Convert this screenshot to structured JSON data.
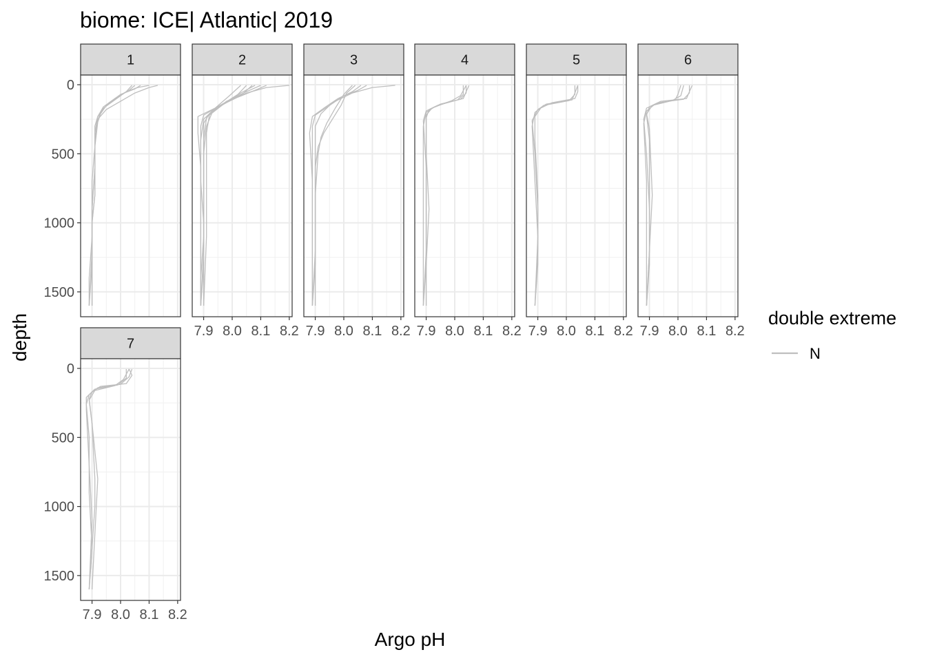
{
  "chart_data": {
    "type": "line",
    "title": "biome: ICE| Atlantic| 2019",
    "xlabel": "Argo pH",
    "ylabel": "depth",
    "xlim": [
      7.86,
      8.21
    ],
    "ylim": [
      1680,
      -70
    ],
    "y_reversed": true,
    "x_ticks": [
      7.9,
      8.0,
      8.1,
      8.2
    ],
    "x_tick_labels": [
      "7.9",
      "8.0",
      "8.1",
      "8.2"
    ],
    "y_ticks": [
      0,
      500,
      1000,
      1500
    ],
    "y_tick_labels": [
      "0",
      "500",
      "1000",
      "1500"
    ],
    "grid": true,
    "legend": {
      "title": "double extreme",
      "position": "right",
      "entries": [
        {
          "label": "N",
          "color": "#bebebe"
        }
      ]
    },
    "line_color": "#bebebe",
    "panels": [
      {
        "label": "1",
        "series": [
          {
            "x": [
              8.13,
              8.1,
              8.05,
              8.0,
              7.95,
              7.92,
              7.91,
              7.91,
              7.91,
              7.9,
              7.9,
              7.9
            ],
            "y": [
              5,
              20,
              60,
              120,
              180,
              250,
              350,
              500,
              800,
              1000,
              1300,
              1600
            ]
          },
          {
            "x": [
              8.1,
              8.06,
              8.02,
              7.98,
              7.94,
              7.92,
              7.91,
              7.91,
              7.9,
              7.9,
              7.89,
              7.89
            ],
            "y": [
              5,
              20,
              50,
              100,
              160,
              230,
              350,
              600,
              900,
              1100,
              1400,
              1600
            ]
          },
          {
            "x": [
              8.07,
              8.05,
              8.0,
              7.96,
              7.93,
              7.92,
              7.91,
              7.91,
              7.91,
              7.9,
              7.9,
              7.9
            ],
            "y": [
              5,
              30,
              70,
              130,
              200,
              260,
              400,
              600,
              800,
              1000,
              1300,
              1600
            ]
          },
          {
            "x": [
              8.05,
              8.03,
              7.99,
              7.95,
              7.93,
              7.92,
              7.91,
              7.9,
              7.9,
              7.9,
              7.89
            ],
            "y": [
              5,
              40,
              90,
              150,
              210,
              270,
              450,
              700,
              1000,
              1300,
              1600
            ]
          },
          {
            "x": [
              8.04,
              8.02,
              7.98,
              7.94,
              7.92,
              7.91,
              7.91,
              7.9,
              7.9,
              7.89
            ],
            "y": [
              5,
              50,
              110,
              170,
              230,
              300,
              600,
              900,
              1200,
              1600
            ]
          }
        ]
      },
      {
        "label": "2",
        "series": [
          {
            "x": [
              8.2,
              8.12,
              8.05,
              7.98,
              7.93,
              7.91,
              7.9,
              7.9,
              7.9,
              7.89,
              7.89
            ],
            "y": [
              5,
              20,
              60,
              120,
              200,
              300,
              500,
              800,
              1100,
              1400,
              1600
            ]
          },
          {
            "x": [
              8.12,
              8.08,
              8.02,
              7.95,
              7.9,
              7.89,
              7.89,
              7.89,
              7.89,
              7.89
            ],
            "y": [
              5,
              40,
              90,
              160,
              220,
              300,
              600,
              900,
              1300,
              1600
            ]
          },
          {
            "x": [
              8.1,
              8.05,
              8.0,
              7.94,
              7.88,
              7.88,
              7.89,
              7.89,
              7.89,
              7.89
            ],
            "y": [
              5,
              50,
              100,
              170,
              230,
              350,
              600,
              1000,
              1300,
              1600
            ]
          },
          {
            "x": [
              8.07,
              8.04,
              7.98,
              7.93,
              7.9,
              7.89,
              7.89,
              7.9,
              7.9,
              7.89
            ],
            "y": [
              5,
              60,
              130,
              190,
              250,
              400,
              700,
              1000,
              1300,
              1600
            ]
          },
          {
            "x": [
              8.05,
              8.02,
              7.96,
              7.92,
              7.9,
              7.9,
              7.9,
              7.9,
              7.89
            ],
            "y": [
              5,
              70,
              150,
              210,
              280,
              500,
              800,
              1200,
              1600
            ]
          },
          {
            "x": [
              8.03,
              7.99,
              7.94,
              7.91,
              7.9,
              7.9,
              7.9,
              7.9
            ],
            "y": [
              5,
              80,
              170,
              240,
              400,
              800,
              1200,
              1600
            ]
          },
          {
            "x": [
              8.08,
              8.03,
              7.97,
              7.92,
              7.91,
              7.91,
              7.91,
              7.9
            ],
            "y": [
              5,
              60,
              140,
              220,
              350,
              700,
              1100,
              1600
            ]
          }
        ]
      },
      {
        "label": "3",
        "series": [
          {
            "x": [
              8.18,
              8.1,
              8.03,
              7.96,
              7.92,
              7.9,
              7.9,
              7.9,
              7.9,
              7.89
            ],
            "y": [
              5,
              20,
              60,
              130,
              210,
              300,
              500,
              900,
              1300,
              1600
            ]
          },
          {
            "x": [
              8.08,
              8.05,
              8.0,
              7.95,
              7.9,
              7.89,
              7.89,
              7.89,
              7.89,
              7.89
            ],
            "y": [
              5,
              40,
              80,
              150,
              220,
              300,
              600,
              1000,
              1300,
              1600
            ]
          },
          {
            "x": [
              8.06,
              8.03,
              7.98,
              7.93,
              7.89,
              7.88,
              7.89,
              7.89,
              7.89,
              7.89
            ],
            "y": [
              5,
              50,
              100,
              170,
              230,
              350,
              700,
              1000,
              1300,
              1600
            ]
          },
          {
            "x": [
              8.04,
              8.01,
              7.99,
              7.96,
              7.93,
              7.91,
              7.9,
              7.9,
              7.9,
              7.89
            ],
            "y": [
              5,
              60,
              150,
              250,
              350,
              450,
              600,
              900,
              1200,
              1600
            ]
          },
          {
            "x": [
              8.03,
              8.0,
              7.97,
              7.94,
              7.92,
              7.91,
              7.9,
              7.9,
              7.9
            ],
            "y": [
              5,
              70,
              170,
              280,
              380,
              500,
              800,
              1200,
              1600
            ]
          }
        ]
      },
      {
        "label": "4",
        "series": [
          {
            "x": [
              8.05,
              8.04,
              8.03,
              7.97,
              7.92,
              7.9,
              7.9,
              7.9,
              7.9,
              7.89
            ],
            "y": [
              5,
              50,
              100,
              130,
              170,
              220,
              400,
              800,
              1200,
              1600
            ]
          },
          {
            "x": [
              8.04,
              8.04,
              8.02,
              7.95,
              7.91,
              7.9,
              7.9,
              7.91,
              7.9,
              7.89
            ],
            "y": [
              5,
              60,
              105,
              140,
              180,
              240,
              500,
              900,
              1300,
              1600
            ]
          },
          {
            "x": [
              8.03,
              8.03,
              8.01,
              7.94,
              7.9,
              7.89,
              7.9,
              7.9,
              7.9
            ],
            "y": [
              5,
              70,
              110,
              150,
              190,
              260,
              600,
              1100,
              1600
            ]
          },
          {
            "x": [
              8.04,
              8.02,
              7.99,
              7.93,
              7.9,
              7.89,
              7.89,
              7.89
            ],
            "y": [
              5,
              80,
              115,
              160,
              200,
              300,
              800,
              1600
            ]
          }
        ]
      },
      {
        "label": "5",
        "series": [
          {
            "x": [
              8.04,
              8.04,
              8.03,
              7.95,
              7.91,
              7.89,
              7.89,
              7.9,
              7.9,
              7.89
            ],
            "y": [
              5,
              50,
              100,
              130,
              170,
              230,
              400,
              800,
              1200,
              1600
            ]
          },
          {
            "x": [
              8.04,
              8.03,
              8.02,
              7.93,
              7.9,
              7.88,
              7.89,
              7.9,
              7.9,
              7.89
            ],
            "y": [
              5,
              60,
              110,
              140,
              180,
              260,
              500,
              900,
              1300,
              1600
            ]
          },
          {
            "x": [
              8.03,
              8.03,
              8.01,
              7.92,
              7.89,
              7.88,
              7.89,
              7.9,
              7.89
            ],
            "y": [
              5,
              70,
              115,
              150,
              200,
              300,
              700,
              1100,
              1600
            ]
          }
        ]
      },
      {
        "label": "6",
        "series": [
          {
            "x": [
              8.05,
              8.04,
              8.03,
              7.94,
              7.9,
              7.89,
              7.9,
              7.9,
              7.9,
              7.89
            ],
            "y": [
              5,
              50,
              100,
              120,
              160,
              220,
              400,
              800,
              1200,
              1600
            ]
          },
          {
            "x": [
              8.04,
              8.04,
              8.02,
              7.93,
              7.89,
              7.88,
              7.89,
              7.9,
              7.9,
              7.89
            ],
            "y": [
              5,
              60,
              105,
              130,
              170,
              250,
              500,
              900,
              1300,
              1600
            ]
          },
          {
            "x": [
              8.01,
              8.0,
              7.99,
              7.92,
              7.89,
              7.88,
              7.89,
              7.89,
              7.89
            ],
            "y": [
              5,
              70,
              110,
              140,
              190,
              280,
              700,
              1100,
              1600
            ]
          },
          {
            "x": [
              8.02,
              8.01,
              7.98,
              7.91,
              7.89,
              7.9,
              7.91,
              7.9,
              7.89
            ],
            "y": [
              5,
              80,
              115,
              150,
              210,
              320,
              800,
              1200,
              1600
            ]
          }
        ]
      },
      {
        "label": "7",
        "series": [
          {
            "x": [
              8.03,
              8.04,
              8.02,
              7.93,
              7.9,
              7.89,
              7.9,
              7.91,
              7.91,
              7.9,
              7.89
            ],
            "y": [
              5,
              50,
              110,
              130,
              170,
              220,
              400,
              800,
              1000,
              1300,
              1600
            ]
          },
          {
            "x": [
              8.04,
              8.03,
              8.0,
              7.92,
              7.89,
              7.88,
              7.89,
              7.89,
              7.9,
              7.89
            ],
            "y": [
              5,
              60,
              115,
              140,
              190,
              260,
              500,
              900,
              1300,
              1600
            ]
          },
          {
            "x": [
              8.02,
              8.02,
              7.99,
              7.91,
              7.88,
              7.88,
              7.89,
              7.9,
              7.89
            ],
            "y": [
              5,
              70,
              120,
              150,
              210,
              300,
              700,
              1100,
              1600
            ]
          },
          {
            "x": [
              8.03,
              8.01,
              7.98,
              7.91,
              7.89,
              7.9,
              7.92,
              7.91,
              7.9
            ],
            "y": [
              5,
              80,
              125,
              160,
              230,
              400,
              800,
              1200,
              1600
            ]
          }
        ]
      }
    ]
  }
}
